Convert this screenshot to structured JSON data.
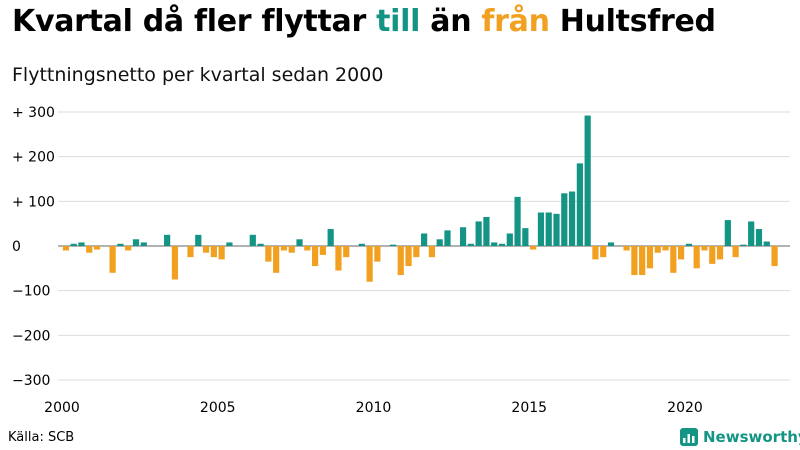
{
  "title": {
    "part1": "Kvartal då fler flyttar ",
    "till": "till",
    "part2": " än ",
    "fran": "från",
    "part3": " Hultsfred"
  },
  "subtitle": "Flyttningsnetto per kvartal sedan 2000",
  "source": "Källa: SCB",
  "brand": "Newsworthy",
  "colors": {
    "positive": "#139484",
    "negative": "#f2a020",
    "grid": "#dddddd",
    "zero": "#666666"
  },
  "chart_data": {
    "type": "bar",
    "title": "Kvartal då fler flyttar till än från Hultsfred",
    "subtitle": "Flyttningsnetto per kvartal sedan 2000",
    "x_ticks": [
      "2000",
      "2005",
      "2010",
      "2015",
      "2020"
    ],
    "y_ticks": [
      {
        "value": 300,
        "label": "+ 300"
      },
      {
        "value": 200,
        "label": "+ 200"
      },
      {
        "value": 100,
        "label": "+ 100"
      },
      {
        "value": 0,
        "label": "0"
      },
      {
        "value": -100,
        "label": "−100"
      },
      {
        "value": -200,
        "label": "−200"
      },
      {
        "value": -300,
        "label": "−300"
      }
    ],
    "ylim": [
      -300,
      300
    ],
    "grid": true,
    "start_year": 2000,
    "values": [
      -10,
      5,
      8,
      -15,
      -8,
      0,
      -60,
      5,
      -10,
      15,
      8,
      0,
      0,
      25,
      -75,
      0,
      -25,
      25,
      -15,
      -25,
      -30,
      8,
      0,
      0,
      25,
      5,
      -35,
      -60,
      -10,
      -15,
      15,
      -10,
      -45,
      -20,
      38,
      -55,
      -25,
      0,
      5,
      -80,
      -35,
      0,
      3,
      -65,
      -45,
      -25,
      28,
      -25,
      15,
      35,
      0,
      42,
      5,
      55,
      65,
      8,
      5,
      28,
      110,
      40,
      -8,
      75,
      75,
      72,
      118,
      122,
      185,
      292,
      -30,
      -25,
      8,
      0,
      -10,
      -65,
      -65,
      -50,
      -15,
      -10,
      -60,
      -30,
      5,
      -50,
      -10,
      -40,
      -30,
      58,
      -25,
      3,
      55,
      38,
      10,
      -45
    ]
  }
}
